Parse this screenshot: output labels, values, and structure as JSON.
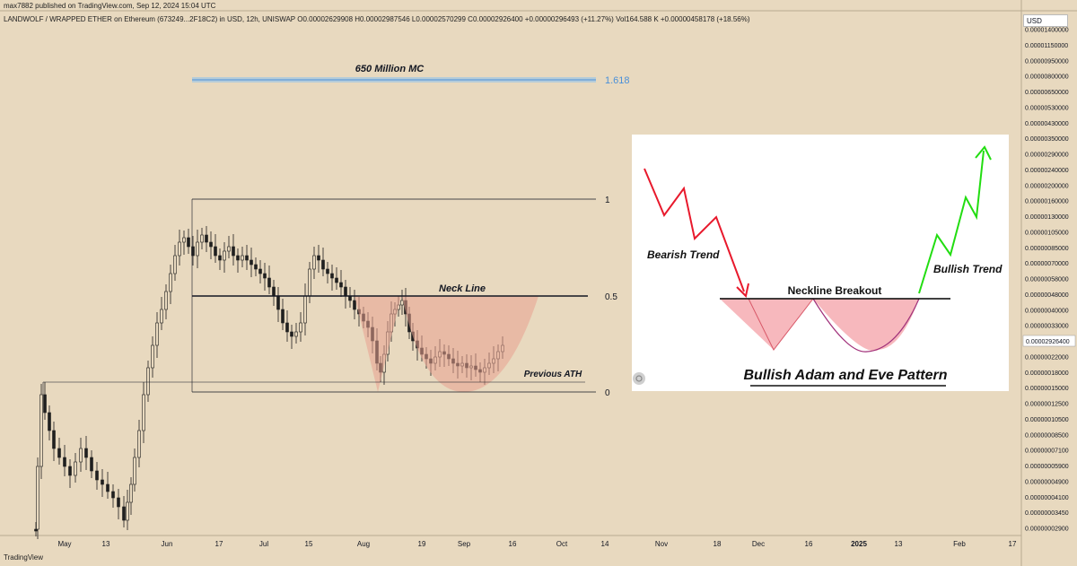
{
  "header": {
    "published": "max7882 published on TradingView.com, Sep 12, 2024 15:04 UTC",
    "symbol_line": "LANDWOLF / WRAPPED ETHER on Ethereum (673249...2F18C2) in USD, 12h, UNISWAP  O0.00002629908  H0.00002987546  L0.00002570299  C0.00002926400  +0.00000296493 (+11.27%)  Vol164.588 K  +0.00000458178 (+18.56%)"
  },
  "currency_label": "USD",
  "footer_brand": "TradingView",
  "chart_data": {
    "type": "candlestick",
    "x_ticks": [
      "May",
      "13",
      "Jun",
      "17",
      "Jul",
      "15",
      "Aug",
      "19",
      "Sep",
      "16",
      "Oct",
      "14",
      "Nov",
      "18",
      "Dec",
      "16",
      "2025",
      "13",
      "Feb",
      "17"
    ],
    "y_ticks": [
      "0.00001400000",
      "0.00001150000",
      "0.00000950000",
      "0.00000800000",
      "0.00000650000",
      "0.00000530000",
      "0.00000430000",
      "0.00000350000",
      "0.00000290000",
      "0.00000240000",
      "0.00000200000",
      "0.00000160000",
      "0.00000130000",
      "0.00000105000",
      "0.00000085000",
      "0.00000070000",
      "0.00000058000",
      "0.00000048000",
      "0.00000040000",
      "0.00000033000",
      "0.00000027000",
      "0.00000022000",
      "0.00000018000",
      "0.00000015000",
      "0.00000012500",
      "0.00000010500",
      "0.00000008500",
      "0.00000007100",
      "0.00000005900",
      "0.00000004900",
      "0.00000004100",
      "0.00000003450",
      "0.00000002900"
    ],
    "last_price": "0.00002926400",
    "fib_levels": [
      {
        "label": "1.618",
        "color": "#4a90d9"
      },
      {
        "label": "1",
        "color": "#131722"
      },
      {
        "label": "0.5",
        "color": "#131722"
      },
      {
        "label": "0",
        "color": "#131722"
      }
    ],
    "annotations": {
      "mc_target": "650 Million MC",
      "neck_line": "Neck Line",
      "previous_ath": "Previous ATH"
    },
    "pattern_color": "#e8a090",
    "up_color": "#1f1f1f",
    "down_color": "#1f1f1f"
  },
  "inset": {
    "bearish": "Bearish Trend",
    "bullish": "Bullish Trend",
    "neckline": "Neckline Breakout",
    "title": "Bullish Adam and Eve Pattern",
    "bear_color": "#e8192c",
    "bull_color": "#22dd11",
    "fill_color": "#f7b8bd"
  }
}
